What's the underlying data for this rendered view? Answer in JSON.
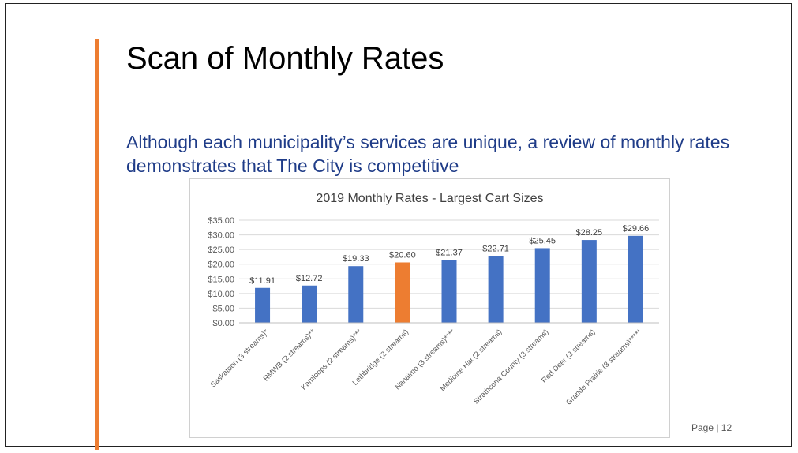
{
  "slide": {
    "title": "Scan of Monthly Rates",
    "subtitle": "Although each municipality’s services are unique, a review of monthly rates demonstrates that The City is competitive",
    "page_label": "Page | 12"
  },
  "colors": {
    "accent": "#ED7D31",
    "bar_default": "#4472C4",
    "bar_highlight": "#ED7D31",
    "subtitle": "#1F3C88"
  },
  "chart_data": {
    "type": "bar",
    "title": "2019 Monthly Rates - Largest Cart Sizes",
    "xlabel": "",
    "ylabel": "",
    "ylim": [
      0,
      35
    ],
    "yticks": [
      "$0.00",
      "$5.00",
      "$10.00",
      "$15.00",
      "$20.00",
      "$25.00",
      "$30.00",
      "$35.00"
    ],
    "ytick_values": [
      0,
      5,
      10,
      15,
      20,
      25,
      30,
      35
    ],
    "grid": true,
    "categories": [
      "Saskatoon (3 streams)*",
      "RMWB (2 streams)**",
      "Kamloops (2 streams)***",
      "Lethbridge (2 streams)",
      "Nanaimo (3 streams)****",
      "Medicine Hat (2 streams)",
      "Strathcona County (3 streams)",
      "Red Deer (3 streams)",
      "Grande Prairie (3 streams)*****"
    ],
    "values": [
      11.91,
      12.72,
      19.33,
      20.6,
      21.37,
      22.71,
      25.45,
      28.25,
      29.66
    ],
    "data_labels": [
      "$11.91",
      "$12.72",
      "$19.33",
      "$20.60",
      "$21.37",
      "$22.71",
      "$25.45",
      "$28.25",
      "$29.66"
    ],
    "highlight_category": "Lethbridge (2 streams)"
  }
}
